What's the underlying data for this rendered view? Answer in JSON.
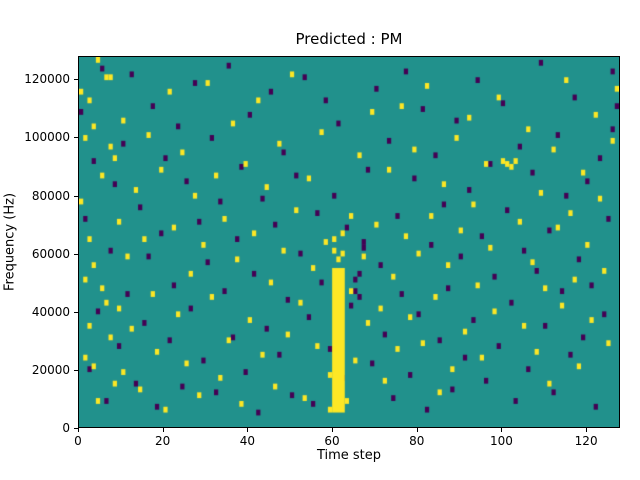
{
  "chart_data": {
    "type": "heatmap",
    "title": "Predicted : PM",
    "xlabel": "Time step",
    "ylabel": "Frequency (Hz)",
    "xlim": [
      0,
      128
    ],
    "ylim": [
      0,
      128000
    ],
    "xticks": [
      0,
      20,
      40,
      60,
      80,
      100,
      120
    ],
    "yticks": [
      0,
      20000,
      40000,
      60000,
      80000,
      100000,
      120000
    ],
    "grid": false,
    "legend": "none",
    "grid_size": {
      "x": 128,
      "y": 128
    },
    "cell_hz": 1000,
    "colors": {
      "background": "#21918c",
      "high": "#fde725",
      "low": "#440154",
      "figure": "#ffffff",
      "axis": "#000000"
    },
    "band": {
      "x": 60,
      "width": 3,
      "y_start_bin": 5,
      "y_end_bin": 55
    },
    "yellow_cells": [
      [
        0,
        115
      ],
      [
        0,
        77
      ],
      [
        1,
        99
      ],
      [
        1,
        23
      ],
      [
        1,
        50
      ],
      [
        2,
        64
      ],
      [
        2,
        34
      ],
      [
        2,
        112
      ],
      [
        3,
        55
      ],
      [
        3,
        20
      ],
      [
        3,
        103
      ],
      [
        4,
        8
      ],
      [
        4,
        126
      ],
      [
        5,
        86
      ],
      [
        5,
        47
      ],
      [
        6,
        120
      ],
      [
        6,
        42
      ],
      [
        7,
        30
      ],
      [
        7,
        96
      ],
      [
        7,
        120
      ],
      [
        8,
        14
      ],
      [
        8,
        92
      ],
      [
        9,
        70
      ],
      [
        9,
        40
      ],
      [
        10,
        105
      ],
      [
        10,
        18
      ],
      [
        11,
        58
      ],
      [
        12,
        33
      ],
      [
        13,
        81
      ],
      [
        14,
        12
      ],
      [
        15,
        64
      ],
      [
        16,
        100
      ],
      [
        17,
        45
      ],
      [
        18,
        25
      ],
      [
        19,
        88
      ],
      [
        20,
        5
      ],
      [
        21,
        115
      ],
      [
        22,
        68
      ],
      [
        23,
        38
      ],
      [
        24,
        94
      ],
      [
        25,
        21
      ],
      [
        26,
        52
      ],
      [
        27,
        79
      ],
      [
        28,
        10
      ],
      [
        29,
        62
      ],
      [
        30,
        118
      ],
      [
        31,
        44
      ],
      [
        32,
        86
      ],
      [
        33,
        16
      ],
      [
        34,
        71
      ],
      [
        35,
        29
      ],
      [
        36,
        104
      ],
      [
        37,
        57
      ],
      [
        38,
        7
      ],
      [
        39,
        90
      ],
      [
        40,
        36
      ],
      [
        41,
        66
      ],
      [
        42,
        112
      ],
      [
        43,
        24
      ],
      [
        44,
        82
      ],
      [
        45,
        49
      ],
      [
        46,
        13
      ],
      [
        47,
        97
      ],
      [
        48,
        60
      ],
      [
        49,
        31
      ],
      [
        50,
        121
      ],
      [
        51,
        74
      ],
      [
        52,
        42
      ],
      [
        53,
        9
      ],
      [
        54,
        85
      ],
      [
        55,
        54
      ],
      [
        56,
        27
      ],
      [
        57,
        101
      ],
      [
        58,
        63
      ],
      [
        59,
        17
      ],
      [
        59,
        5
      ],
      [
        60,
        60
      ],
      [
        61,
        57
      ],
      [
        62,
        59
      ],
      [
        60,
        64
      ],
      [
        62,
        66
      ],
      [
        63,
        8
      ],
      [
        64,
        46
      ],
      [
        64,
        72
      ],
      [
        65,
        22
      ],
      [
        66,
        93
      ],
      [
        67,
        58
      ],
      [
        68,
        35
      ],
      [
        69,
        108
      ],
      [
        70,
        69
      ],
      [
        71,
        40
      ],
      [
        72,
        15
      ],
      [
        73,
        88
      ],
      [
        74,
        51
      ],
      [
        75,
        26
      ],
      [
        76,
        110
      ],
      [
        77,
        65
      ],
      [
        78,
        37
      ],
      [
        79,
        95
      ],
      [
        80,
        59
      ],
      [
        81,
        28
      ],
      [
        82,
        117
      ],
      [
        83,
        72
      ],
      [
        84,
        44
      ],
      [
        85,
        11
      ],
      [
        86,
        83
      ],
      [
        87,
        55
      ],
      [
        88,
        19
      ],
      [
        89,
        99
      ],
      [
        90,
        67
      ],
      [
        91,
        32
      ],
      [
        92,
        106
      ],
      [
        93,
        76
      ],
      [
        94,
        48
      ],
      [
        95,
        23
      ],
      [
        96,
        90
      ],
      [
        97,
        61
      ],
      [
        98,
        39
      ],
      [
        99,
        113
      ],
      [
        100,
        91
      ],
      [
        101,
        90
      ],
      [
        102,
        89
      ],
      [
        103,
        91
      ],
      [
        104,
        70
      ],
      [
        105,
        34
      ],
      [
        106,
        102
      ],
      [
        107,
        56
      ],
      [
        108,
        25
      ],
      [
        109,
        80
      ],
      [
        110,
        47
      ],
      [
        111,
        14
      ],
      [
        112,
        95
      ],
      [
        113,
        68
      ],
      [
        114,
        41
      ],
      [
        115,
        119
      ],
      [
        116,
        73
      ],
      [
        117,
        50
      ],
      [
        118,
        20
      ],
      [
        119,
        87
      ],
      [
        120,
        62
      ],
      [
        121,
        36
      ],
      [
        122,
        107
      ],
      [
        123,
        78
      ],
      [
        124,
        53
      ],
      [
        125,
        28
      ],
      [
        126,
        98
      ],
      [
        127,
        116
      ]
    ],
    "purple_cells": [
      [
        0,
        108
      ],
      [
        1,
        71
      ],
      [
        2,
        19
      ],
      [
        3,
        91
      ],
      [
        4,
        39
      ],
      [
        5,
        123
      ],
      [
        6,
        8
      ],
      [
        7,
        60
      ],
      [
        8,
        83
      ],
      [
        9,
        27
      ],
      [
        10,
        97
      ],
      [
        11,
        45
      ],
      [
        12,
        121
      ],
      [
        13,
        14
      ],
      [
        14,
        75
      ],
      [
        15,
        35
      ],
      [
        16,
        58
      ],
      [
        17,
        110
      ],
      [
        18,
        6
      ],
      [
        19,
        66
      ],
      [
        20,
        92
      ],
      [
        21,
        29
      ],
      [
        22,
        48
      ],
      [
        23,
        103
      ],
      [
        24,
        13
      ],
      [
        25,
        84
      ],
      [
        26,
        40
      ],
      [
        27,
        118
      ],
      [
        28,
        70
      ],
      [
        29,
        22
      ],
      [
        30,
        56
      ],
      [
        31,
        99
      ],
      [
        32,
        11
      ],
      [
        33,
        77
      ],
      [
        34,
        46
      ],
      [
        35,
        124
      ],
      [
        36,
        30
      ],
      [
        37,
        64
      ],
      [
        38,
        89
      ],
      [
        39,
        18
      ],
      [
        40,
        107
      ],
      [
        41,
        52
      ],
      [
        42,
        4
      ],
      [
        43,
        78
      ],
      [
        44,
        33
      ],
      [
        45,
        115
      ],
      [
        46,
        69
      ],
      [
        47,
        24
      ],
      [
        48,
        94
      ],
      [
        49,
        43
      ],
      [
        50,
        10
      ],
      [
        51,
        86
      ],
      [
        52,
        59
      ],
      [
        53,
        120
      ],
      [
        54,
        37
      ],
      [
        55,
        7
      ],
      [
        56,
        73
      ],
      [
        57,
        49
      ],
      [
        58,
        112
      ],
      [
        59,
        26
      ],
      [
        60,
        79
      ],
      [
        61,
        104
      ],
      [
        62,
        16
      ],
      [
        63,
        68
      ],
      [
        64,
        41
      ],
      [
        65,
        50
      ],
      [
        65,
        46
      ],
      [
        66,
        44
      ],
      [
        66,
        52
      ],
      [
        67,
        63
      ],
      [
        67,
        61
      ],
      [
        68,
        88
      ],
      [
        69,
        21
      ],
      [
        70,
        116
      ],
      [
        71,
        55
      ],
      [
        72,
        31
      ],
      [
        73,
        98
      ],
      [
        74,
        9
      ],
      [
        75,
        72
      ],
      [
        76,
        45
      ],
      [
        77,
        122
      ],
      [
        78,
        17
      ],
      [
        79,
        85
      ],
      [
        80,
        38
      ],
      [
        81,
        109
      ],
      [
        82,
        5
      ],
      [
        83,
        62
      ],
      [
        84,
        93
      ],
      [
        85,
        29
      ],
      [
        86,
        76
      ],
      [
        87,
        47
      ],
      [
        88,
        12
      ],
      [
        89,
        105
      ],
      [
        90,
        58
      ],
      [
        91,
        23
      ],
      [
        92,
        81
      ],
      [
        93,
        36
      ],
      [
        94,
        119
      ],
      [
        95,
        65
      ],
      [
        96,
        15
      ],
      [
        97,
        90
      ],
      [
        98,
        51
      ],
      [
        99,
        27
      ],
      [
        100,
        111
      ],
      [
        101,
        74
      ],
      [
        102,
        42
      ],
      [
        103,
        8
      ],
      [
        104,
        96
      ],
      [
        105,
        60
      ],
      [
        106,
        19
      ],
      [
        107,
        87
      ],
      [
        108,
        53
      ],
      [
        109,
        125
      ],
      [
        110,
        34
      ],
      [
        111,
        67
      ],
      [
        112,
        11
      ],
      [
        113,
        100
      ],
      [
        114,
        46
      ],
      [
        115,
        79
      ],
      [
        116,
        24
      ],
      [
        117,
        113
      ],
      [
        118,
        57
      ],
      [
        119,
        30
      ],
      [
        120,
        84
      ],
      [
        121,
        48
      ],
      [
        122,
        6
      ],
      [
        123,
        92
      ],
      [
        124,
        38
      ],
      [
        125,
        71
      ],
      [
        126,
        102
      ],
      [
        126,
        122
      ],
      [
        127,
        110
      ]
    ]
  }
}
